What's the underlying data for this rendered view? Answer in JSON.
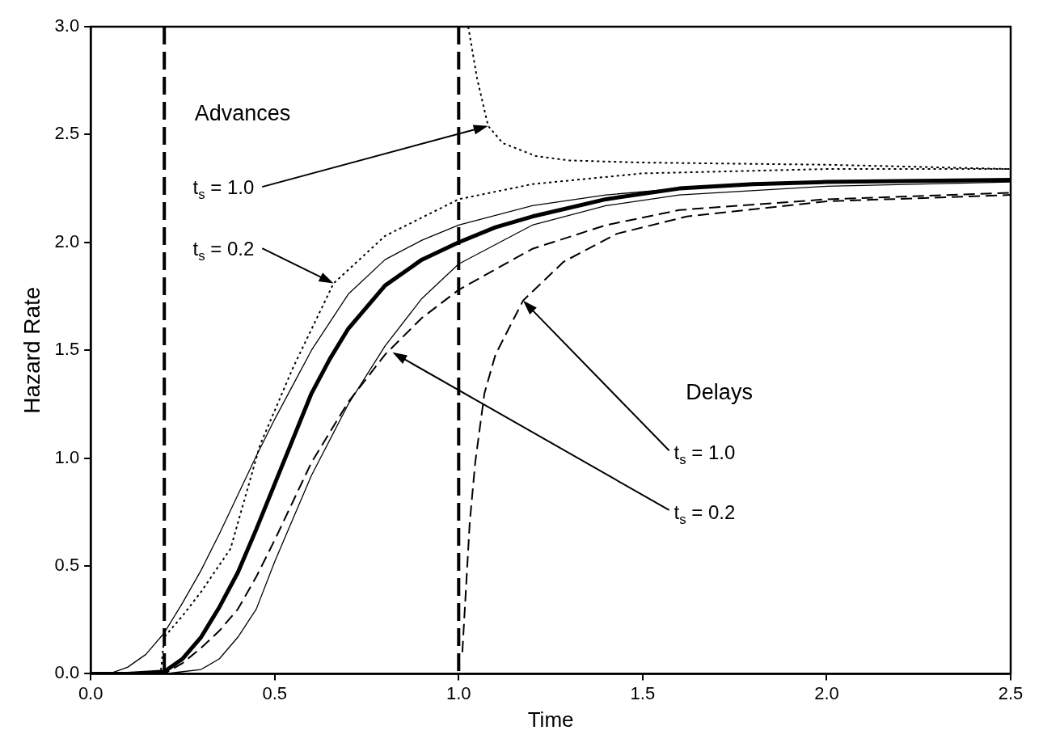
{
  "chart_data": {
    "type": "line",
    "xlabel": "Time",
    "ylabel": "Hazard Rate",
    "xlim": [
      0,
      2.5
    ],
    "ylim": [
      0,
      3
    ],
    "xticks": [
      {
        "value": 0,
        "label": "0.0"
      },
      {
        "value": 0.5,
        "label": "0.5"
      },
      {
        "value": 1,
        "label": "1.0"
      },
      {
        "value": 1.5,
        "label": "1.5"
      },
      {
        "value": 2,
        "label": "2.0"
      },
      {
        "value": 2.5,
        "label": "2.5"
      }
    ],
    "yticks": [
      {
        "value": 0,
        "label": "0.0"
      },
      {
        "value": 0.5,
        "label": "0.5"
      },
      {
        "value": 1,
        "label": "1.0"
      },
      {
        "value": 1.5,
        "label": "1.5"
      },
      {
        "value": 2,
        "label": "2.0"
      },
      {
        "value": 2.5,
        "label": "2.5"
      },
      {
        "value": 3,
        "label": "3.0"
      }
    ],
    "grid": false,
    "legend": false,
    "marker": "none",
    "series": [
      {
        "color": "#000000",
        "line_style": "solid",
        "x": [
          0,
          0.1,
          0.2,
          0.25,
          0.3,
          0.35,
          0.4,
          0.45,
          0.5,
          0.55,
          0.6,
          0.65,
          0.7,
          0.8,
          0.9,
          1.0,
          1.1,
          1.2,
          1.4,
          1.6,
          1.8,
          2.0,
          2.5
        ],
        "values": [
          0,
          0,
          0.01,
          0.07,
          0.17,
          0.31,
          0.47,
          0.67,
          0.88,
          1.09,
          1.3,
          1.46,
          1.6,
          1.8,
          1.92,
          2.0,
          2.07,
          2.12,
          2.2,
          2.25,
          2.27,
          2.28,
          2.29
        ]
      },
      {
        "color": "#000000",
        "line_style": "solid",
        "x": [
          0,
          0.05,
          0.1,
          0.15,
          0.2,
          0.25,
          0.3,
          0.35,
          0.4,
          0.45,
          0.5,
          0.55,
          0.6,
          0.7,
          0.8,
          0.9,
          1.0,
          1.2,
          1.4,
          1.6,
          2.0,
          2.5
        ],
        "values": [
          0,
          0,
          0.03,
          0.09,
          0.19,
          0.33,
          0.48,
          0.65,
          0.83,
          1.01,
          1.18,
          1.34,
          1.5,
          1.76,
          1.92,
          2.01,
          2.08,
          2.17,
          2.22,
          2.25,
          2.28,
          2.29
        ]
      },
      {
        "color": "#000000",
        "line_style": "solid",
        "x": [
          0,
          0.2,
          0.25,
          0.3,
          0.35,
          0.4,
          0.45,
          0.5,
          0.55,
          0.6,
          0.7,
          0.8,
          0.9,
          1.0,
          1.2,
          1.4,
          1.6,
          2.0,
          2.5
        ],
        "values": [
          0,
          0,
          0.01,
          0.02,
          0.07,
          0.17,
          0.3,
          0.52,
          0.72,
          0.92,
          1.25,
          1.52,
          1.74,
          1.9,
          2.08,
          2.17,
          2.22,
          2.26,
          2.28
        ]
      },
      {
        "color": "#000000",
        "line_style": "dotted",
        "x": [
          0,
          0.19,
          0.2,
          0.25,
          0.3,
          0.38,
          0.46,
          0.55,
          0.66,
          0.8,
          1.0,
          1.2,
          1.5,
          2.0,
          2.5
        ],
        "values": [
          0,
          0,
          0.17,
          0.27,
          0.38,
          0.58,
          1.06,
          1.42,
          1.81,
          2.03,
          2.2,
          2.27,
          2.32,
          2.34,
          2.34
        ]
      },
      {
        "color": "#000000",
        "line_style": "dotted",
        "x": [
          1.026,
          1.05,
          1.08,
          1.12,
          1.21,
          1.3,
          1.5,
          2.0,
          2.5
        ],
        "values": [
          3.0,
          2.76,
          2.54,
          2.46,
          2.4,
          2.38,
          2.37,
          2.36,
          2.34
        ]
      },
      {
        "color": "#000000",
        "line_style": "dashed",
        "x": [
          0,
          0.2,
          0.25,
          0.3,
          0.35,
          0.4,
          0.45,
          0.5,
          0.55,
          0.6,
          0.7,
          0.8,
          0.9,
          1.0,
          1.2,
          1.4,
          1.6,
          2.0,
          2.5
        ],
        "values": [
          0,
          0,
          0.05,
          0.12,
          0.2,
          0.3,
          0.45,
          0.62,
          0.8,
          0.98,
          1.26,
          1.48,
          1.65,
          1.78,
          1.97,
          2.08,
          2.15,
          2.2,
          2.23
        ]
      },
      {
        "color": "#000000",
        "line_style": "dashed",
        "x": [
          1.01,
          1.02,
          1.03,
          1.045,
          1.07,
          1.1,
          1.175,
          1.285,
          1.43,
          1.62,
          2.0,
          2.5
        ],
        "values": [
          0.1,
          0.4,
          0.7,
          0.98,
          1.3,
          1.48,
          1.73,
          1.91,
          2.04,
          2.12,
          2.19,
          2.22
        ]
      }
    ],
    "ref_lines": [
      {
        "axis": "x",
        "value": 0.2,
        "color": "#000000",
        "line_style": "dashed"
      },
      {
        "axis": "x",
        "value": 1.0,
        "color": "#000000",
        "line_style": "dashed"
      }
    ],
    "annotations": [
      "Advances",
      "t$_{s}$ = 1.0",
      "t$_{s}$ = 0.2",
      "Delays",
      "t$_{s}$ = 1.0",
      "t$_{s}$ = 0.2"
    ]
  }
}
